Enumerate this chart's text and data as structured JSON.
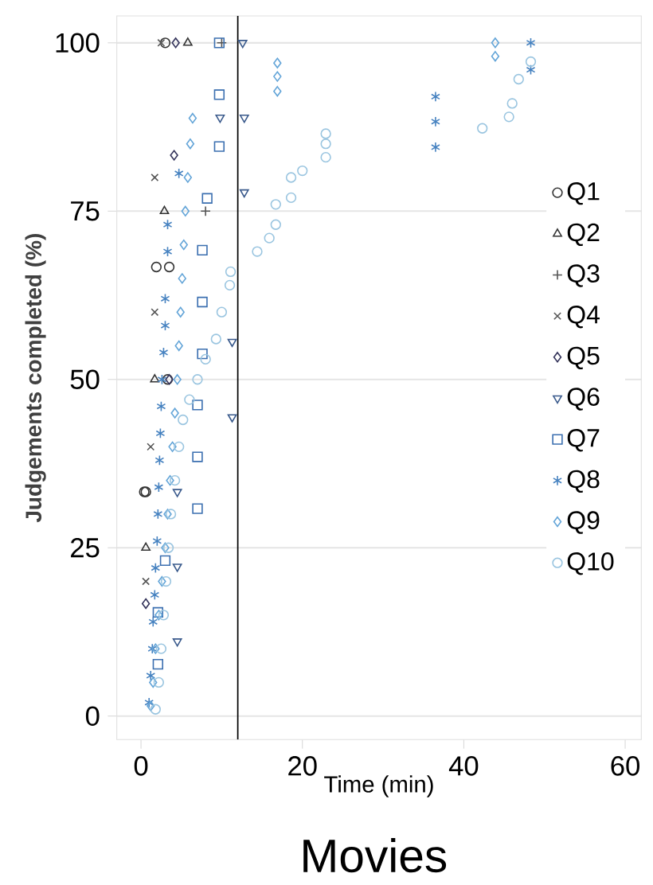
{
  "chart_data": {
    "type": "scatter",
    "title": "Movies",
    "xlabel": "Time (min)",
    "ylabel": "Judgements completed (%)",
    "xlim": [
      -3,
      62
    ],
    "ylim": [
      -3.5,
      104
    ],
    "xticks": [
      0,
      20,
      40,
      60
    ],
    "yticks": [
      0,
      25,
      50,
      75,
      100
    ],
    "grid": "y",
    "legend": "right",
    "ref_lines": [
      {
        "axis": "x",
        "value": 12,
        "color": "#000000"
      }
    ],
    "series": [
      {
        "name": "Q1",
        "color": "#333333",
        "marker": "circle",
        "x": [
          0.4,
          0.6,
          3.3,
          1.9,
          3.5,
          3.0
        ],
        "values": [
          33.3,
          33.3,
          50,
          66.7,
          66.7,
          100
        ]
      },
      {
        "name": "Q2",
        "color": "#333333",
        "marker": "triangle",
        "x": [
          0.6,
          1.7,
          2.9,
          5.8
        ],
        "values": [
          25,
          50,
          75,
          100
        ]
      },
      {
        "name": "Q3",
        "color": "#555555",
        "marker": "plus",
        "x": [
          8,
          10
        ],
        "values": [
          75,
          100
        ]
      },
      {
        "name": "Q4",
        "color": "#555555",
        "marker": "x",
        "x": [
          0.6,
          1.2,
          1.7,
          1.7,
          2.5
        ],
        "values": [
          20,
          40,
          60,
          80,
          100
        ]
      },
      {
        "name": "Q5",
        "color": "#33335a",
        "marker": "diamond",
        "x": [
          0.6,
          3.5,
          4.1,
          4.3
        ],
        "values": [
          16.7,
          50,
          83.3,
          100
        ]
      },
      {
        "name": "Q6",
        "color": "#3a5a8c",
        "marker": "triangle-down",
        "x": [
          4.5,
          4.5,
          4.5,
          11.3,
          11.3,
          12.8,
          9.8,
          12.8,
          12.6
        ],
        "values": [
          11.1,
          22.2,
          33.3,
          44.4,
          55.6,
          77.8,
          88.9,
          88.9,
          100
        ]
      },
      {
        "name": "Q7",
        "color": "#3b6fb0",
        "marker": "square",
        "x": [
          2.1,
          2.1,
          3,
          7,
          7,
          7,
          7.6,
          7.6,
          7.6,
          8.2,
          9.7,
          9.7,
          9.7
        ],
        "values": [
          7.7,
          15.4,
          23.1,
          30.8,
          38.5,
          46.2,
          53.8,
          61.5,
          69.2,
          76.9,
          84.6,
          92.3,
          100
        ]
      },
      {
        "name": "Q8",
        "color": "#4682c0",
        "marker": "cross",
        "x": [
          1,
          1.2,
          1.4,
          1.5,
          1.7,
          1.8,
          2,
          2.1,
          2.2,
          2.3,
          2.4,
          2.5,
          2.6,
          2.8,
          3,
          3,
          3.3,
          3.3,
          4.7,
          36.5,
          36.5,
          36.5,
          48.3,
          48.3
        ],
        "values": [
          2,
          6,
          10,
          14,
          18,
          22,
          26,
          30,
          34,
          38,
          42,
          46,
          50,
          54,
          58,
          62,
          69,
          73,
          80.6,
          84.5,
          88.3,
          92,
          96,
          100
        ]
      },
      {
        "name": "Q9",
        "color": "#64a5d8",
        "marker": "diamond",
        "x": [
          1.2,
          1.5,
          1.8,
          2.2,
          2.6,
          3,
          3.3,
          3.6,
          3.9,
          4.2,
          4.5,
          4.7,
          4.9,
          5.1,
          5.3,
          5.5,
          5.8,
          6.1,
          6.4,
          16.9,
          16.9,
          16.9,
          43.9,
          43.9
        ],
        "values": [
          1.5,
          5,
          10,
          15,
          20,
          25,
          30,
          35,
          40,
          45,
          50,
          55,
          60,
          65,
          70,
          75,
          80,
          85,
          88.8,
          92.8,
          95,
          97,
          98,
          100
        ]
      },
      {
        "name": "Q10",
        "color": "#9ac5e0",
        "marker": "circle",
        "x": [
          1.8,
          2.2,
          2.5,
          2.8,
          3.1,
          3.4,
          3.7,
          4.2,
          4.7,
          5.2,
          6,
          7,
          8,
          9.3,
          10,
          11,
          11.1,
          14.4,
          15.9,
          16.7,
          16.7,
          18.6,
          18.6,
          20,
          22.9,
          22.9,
          22.9,
          42.3,
          45.6,
          46,
          46.8,
          48.3
        ],
        "values": [
          1,
          5,
          10,
          15,
          20,
          25,
          30,
          35,
          40,
          44,
          47,
          50,
          53,
          56,
          60,
          64,
          66,
          69,
          71,
          73,
          76,
          77,
          80,
          81,
          83,
          85,
          86.5,
          87.3,
          89,
          91,
          94.6,
          97.2
        ]
      }
    ]
  }
}
